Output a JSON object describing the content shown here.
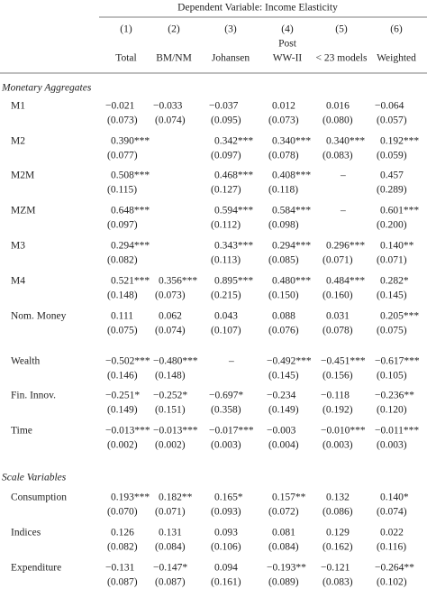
{
  "header": {
    "title": "Dependent Variable: Income Elasticity",
    "column_numbers": [
      "(1)",
      "(2)",
      "(3)",
      "(4)",
      "(5)",
      "(6)"
    ],
    "column_names": [
      [
        "Total"
      ],
      [
        "BM/NM"
      ],
      [
        "Johansen"
      ],
      [
        "Post",
        "WW-II"
      ],
      [
        "< 23 models"
      ],
      [
        "Weighted"
      ]
    ]
  },
  "sections": [
    {
      "title": "Monetary Aggregates",
      "rows": [
        {
          "label": "M1",
          "cells": [
            {
              "est": "−0.021",
              "se": "(0.073)"
            },
            {
              "est": "−0.033",
              "se": "(0.074)"
            },
            {
              "est": "−0.037",
              "se": "(0.095)"
            },
            {
              "est": "0.012",
              "se": "(0.073)"
            },
            {
              "est": "0.016",
              "se": "(0.080)"
            },
            {
              "est": "−0.064",
              "se": "(0.057)"
            }
          ]
        },
        {
          "label": "M2",
          "cells": [
            {
              "est": "0.390***",
              "se": "(0.077)"
            },
            null,
            {
              "est": "0.342***",
              "se": "(0.097)"
            },
            {
              "est": "0.340***",
              "se": "(0.078)"
            },
            {
              "est": "0.340***",
              "se": "(0.083)"
            },
            {
              "est": "0.192***",
              "se": "(0.059)"
            }
          ]
        },
        {
          "label": "M2M",
          "cells": [
            {
              "est": "0.508***",
              "se": "(0.115)"
            },
            null,
            {
              "est": "0.468***",
              "se": "(0.127)"
            },
            {
              "est": "0.408***",
              "se": "(0.118)"
            },
            {
              "est": "–",
              "se": null
            },
            {
              "est": "0.457",
              "se": "(0.289)"
            }
          ]
        },
        {
          "label": "MZM",
          "cells": [
            {
              "est": "0.648***",
              "se": "(0.097)"
            },
            null,
            {
              "est": "0.594***",
              "se": "(0.112)"
            },
            {
              "est": "0.584***",
              "se": "(0.098)"
            },
            {
              "est": "–",
              "se": null
            },
            {
              "est": "0.601***",
              "se": "(0.200)"
            }
          ]
        },
        {
          "label": "M3",
          "cells": [
            {
              "est": "0.294***",
              "se": "(0.082)"
            },
            null,
            {
              "est": "0.343***",
              "se": "(0.113)"
            },
            {
              "est": "0.294***",
              "se": "(0.085)"
            },
            {
              "est": "0.296***",
              "se": "(0.071)"
            },
            {
              "est": "0.140**",
              "se": "(0.071)"
            }
          ]
        },
        {
          "label": "M4",
          "cells": [
            {
              "est": "0.521***",
              "se": "(0.148)"
            },
            {
              "est": "0.356***",
              "se": "(0.073)"
            },
            {
              "est": "0.895***",
              "se": "(0.215)"
            },
            {
              "est": "0.480***",
              "se": "(0.150)"
            },
            {
              "est": "0.484***",
              "se": "(0.160)"
            },
            {
              "est": "0.282*",
              "se": "(0.145)"
            }
          ]
        },
        {
          "label": "Nom. Money",
          "cells": [
            {
              "est": "0.111",
              "se": "(0.075)"
            },
            {
              "est": "0.062",
              "se": "(0.074)"
            },
            {
              "est": "0.043",
              "se": "(0.107)"
            },
            {
              "est": "0.088",
              "se": "(0.076)"
            },
            {
              "est": "0.031",
              "se": "(0.078)"
            },
            {
              "est": "0.205***",
              "se": "(0.075)"
            }
          ]
        },
        {
          "label": "Wealth",
          "cells": [
            {
              "est": "−0.502***",
              "se": "(0.146)"
            },
            {
              "est": "−0.480***",
              "se": "(0.148)"
            },
            {
              "est": "–",
              "se": null
            },
            {
              "est": "−0.492***",
              "se": "(0.145)"
            },
            {
              "est": "−0.451***",
              "se": "(0.156)"
            },
            {
              "est": "−0.617***",
              "se": "(0.105)"
            }
          ]
        },
        {
          "label": "Fin. Innov.",
          "cells": [
            {
              "est": "−0.251*",
              "se": "(0.149)"
            },
            {
              "est": "−0.252*",
              "se": "(0.151)"
            },
            {
              "est": "−0.697*",
              "se": "(0.358)"
            },
            {
              "est": "−0.234",
              "se": "(0.149)"
            },
            {
              "est": "−0.118",
              "se": "(0.192)"
            },
            {
              "est": "−0.236**",
              "se": "(0.120)"
            }
          ]
        },
        {
          "label": "Time",
          "cells": [
            {
              "est": "−0.013***",
              "se": "(0.002)"
            },
            {
              "est": "−0.013***",
              "se": "(0.002)"
            },
            {
              "est": "−0.017***",
              "se": "(0.003)"
            },
            {
              "est": "−0.003",
              "se": "(0.004)"
            },
            {
              "est": "−0.010***",
              "se": "(0.003)"
            },
            {
              "est": "−0.011***",
              "se": "(0.003)"
            }
          ]
        }
      ]
    },
    {
      "title": "Scale Variables",
      "rows": [
        {
          "label": "Consumption",
          "cells": [
            {
              "est": "0.193***",
              "se": "(0.070)"
            },
            {
              "est": "0.182**",
              "se": "(0.071)"
            },
            {
              "est": "0.165*",
              "se": "(0.093)"
            },
            {
              "est": "0.157**",
              "se": "(0.072)"
            },
            {
              "est": "0.132",
              "se": "(0.086)"
            },
            {
              "est": "0.140*",
              "se": "(0.074)"
            }
          ]
        },
        {
          "label": "Indices",
          "cells": [
            {
              "est": "0.126",
              "se": "(0.082)"
            },
            {
              "est": "0.131",
              "se": "(0.084)"
            },
            {
              "est": "0.093",
              "se": "(0.106)"
            },
            {
              "est": "0.081",
              "se": "(0.084)"
            },
            {
              "est": "0.129",
              "se": "(0.162)"
            },
            {
              "est": "0.022",
              "se": "(0.116)"
            }
          ]
        },
        {
          "label": "Expenditure",
          "cells": [
            {
              "est": "−0.131",
              "se": "(0.087)"
            },
            {
              "est": "−0.147*",
              "se": "(0.087)"
            },
            {
              "est": "0.094",
              "se": "(0.161)"
            },
            {
              "est": "−0.193**",
              "se": "(0.089)"
            },
            {
              "est": "−0.121",
              "se": "(0.083)"
            },
            {
              "est": "−0.264**",
              "se": "(0.102)"
            }
          ]
        }
      ]
    }
  ]
}
